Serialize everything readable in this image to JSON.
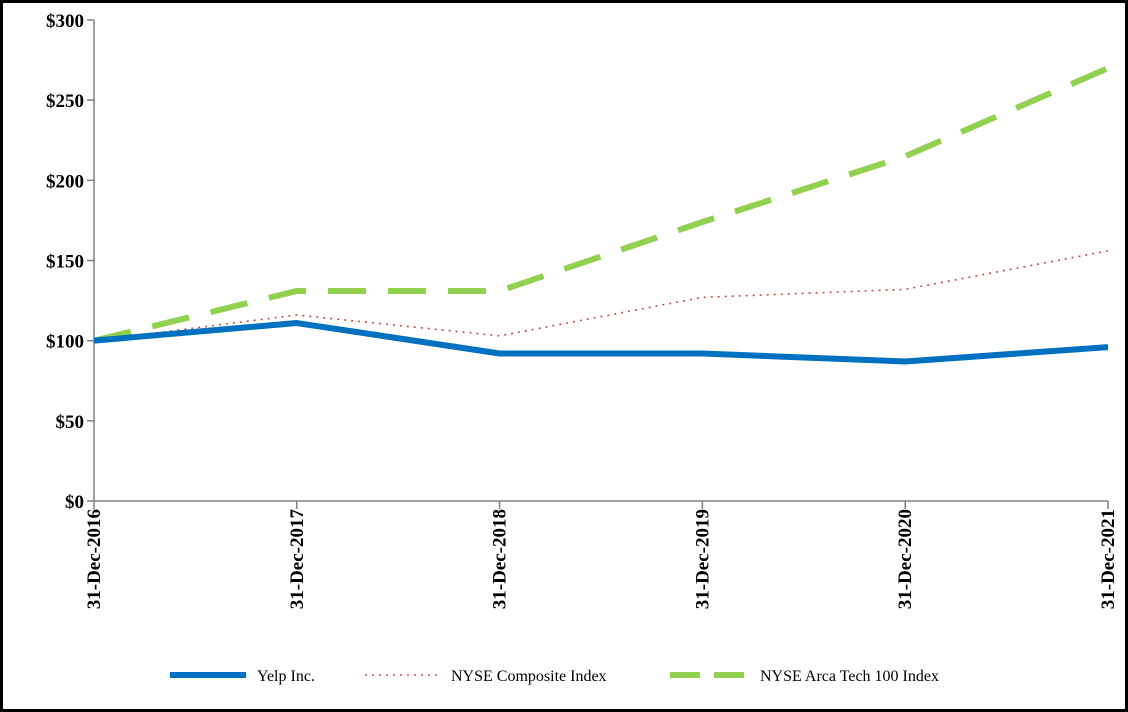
{
  "chart_data": {
    "type": "line",
    "title": "",
    "xlabel": "",
    "ylabel": "",
    "categories": [
      "31-Dec-2016",
      "31-Dec-2017",
      "31-Dec-2018",
      "31-Dec-2019",
      "31-Dec-2020",
      "31-Dec-2021"
    ],
    "y_ticks": [
      "$0",
      "$50",
      "$100",
      "$150",
      "$200",
      "$250",
      "$300"
    ],
    "ylim": [
      0,
      300
    ],
    "grid": false,
    "legend_position": "bottom",
    "series": [
      {
        "name": "Yelp Inc.",
        "values": [
          100,
          111,
          92,
          92,
          87,
          96
        ],
        "color": "#0070C0",
        "style": "solid"
      },
      {
        "name": "NYSE Composite Index",
        "values": [
          100,
          116,
          103,
          127,
          132,
          156
        ],
        "color": "#C0504D",
        "style": "dotted"
      },
      {
        "name": "NYSE Arca Tech 100 Index",
        "values": [
          100,
          131,
          131,
          174,
          215,
          270
        ],
        "color": "#92D050",
        "style": "dashed"
      }
    ]
  }
}
